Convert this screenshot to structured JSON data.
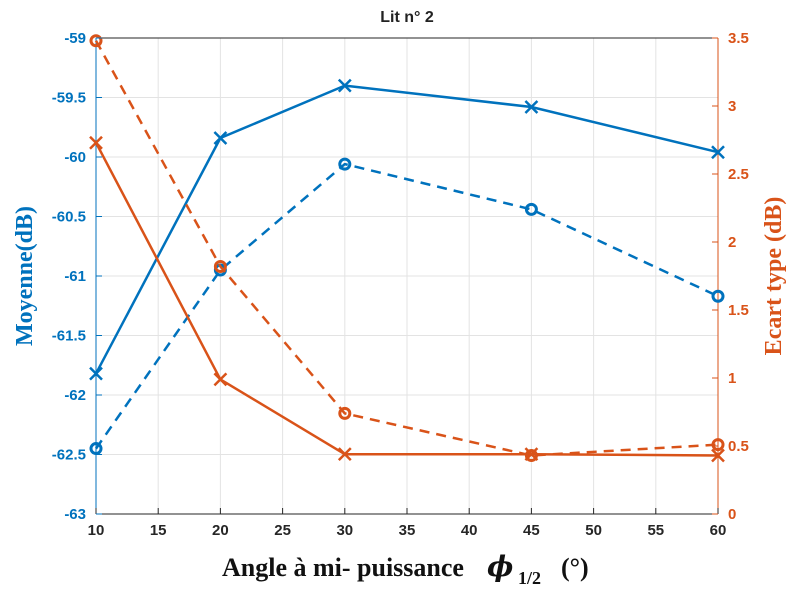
{
  "chart_data": {
    "type": "line",
    "title": "Lit n° 2",
    "xlabel_parts": {
      "main": "Angle à mi- puissance",
      "symbol": "ϕ",
      "subscript": "1/2",
      "unit": "(°)"
    },
    "ylabel_left": "Moyenne(dB)",
    "ylabel_right": "Ecart type (dB)",
    "xlim": [
      10,
      60
    ],
    "ylim_left": [
      -63,
      -59
    ],
    "ylim_right": [
      0,
      3.5
    ],
    "x_ticks": [
      "10",
      "15",
      "20",
      "25",
      "30",
      "35",
      "40",
      "45",
      "50",
      "55",
      "60"
    ],
    "y_left_ticks": [
      "-59",
      "-59.5",
      "-60",
      "-60.5",
      "-61",
      "-61.5",
      "-62",
      "-62.5",
      "-63"
    ],
    "y_right_ticks": [
      "3.5",
      "3",
      "2.5",
      "2",
      "1.5",
      "1",
      "0.5",
      "0"
    ],
    "grid": true,
    "colors": {
      "left": "#0072BD",
      "right": "#D95319"
    },
    "series": [
      {
        "axis": "left",
        "style": "solid",
        "marker": "x",
        "color": "#0072BD",
        "x": [
          10,
          20,
          30,
          45,
          60
        ],
        "y": [
          -61.82,
          -59.84,
          -59.4,
          -59.58,
          -59.96
        ]
      },
      {
        "axis": "left",
        "style": "dashed",
        "marker": "o",
        "color": "#0072BD",
        "x": [
          10,
          20,
          30,
          45,
          60
        ],
        "y": [
          -62.45,
          -60.95,
          -60.06,
          -60.44,
          -61.17
        ]
      },
      {
        "axis": "right",
        "style": "solid",
        "marker": "x",
        "color": "#D95319",
        "x": [
          10,
          20,
          30,
          45,
          60
        ],
        "y": [
          2.73,
          0.99,
          0.44,
          0.44,
          0.43
        ]
      },
      {
        "axis": "right",
        "style": "dashed",
        "marker": "o",
        "color": "#D95319",
        "x": [
          10,
          20,
          30,
          45,
          60
        ],
        "y": [
          3.48,
          1.82,
          0.74,
          0.43,
          0.51
        ]
      }
    ]
  }
}
